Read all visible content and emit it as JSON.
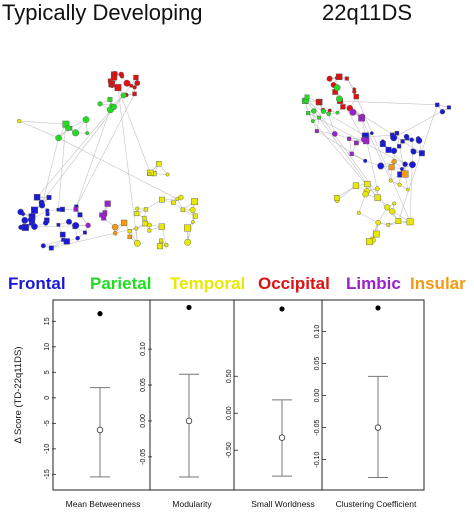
{
  "titles": {
    "left": "Typically Developing",
    "right": "22q11DS"
  },
  "legend": {
    "items": [
      {
        "label": "Frontal",
        "color": "#1a1ad6"
      },
      {
        "label": "Parietal",
        "color": "#22dd22"
      },
      {
        "label": "Temporal",
        "color": "#e8e800"
      },
      {
        "label": "Occipital",
        "color": "#dd1111"
      },
      {
        "label": "Limbic",
        "color": "#9922cc"
      },
      {
        "label": "Insular",
        "color": "#f29a12"
      }
    ]
  },
  "chart_data": {
    "type": "scatter",
    "ylabel": "Δ Score (TD-22q11DS)",
    "panels": [
      {
        "label": "Mean Betweenness",
        "yticks": [
          15,
          10,
          5,
          0,
          -5,
          -10,
          -15
        ],
        "ylim": [
          -16.5,
          18
        ],
        "observed": 16.5,
        "null_mean": -6.3,
        "null_upper": 2.0,
        "null_lower": -15.5
      },
      {
        "label": "Modularity",
        "yticks": [
          0.1,
          0.05,
          0.0,
          -0.05
        ],
        "ylim": [
          -0.085,
          0.16
        ],
        "observed": 0.158,
        "null_mean": 0.0,
        "null_upper": 0.065,
        "null_lower": -0.078
      },
      {
        "label": "Small Worldness",
        "yticks": [
          0.5,
          0.0,
          -0.5
        ],
        "ylim": [
          -0.93,
          1.45
        ],
        "observed": 1.41,
        "null_mean": -0.33,
        "null_upper": 0.18,
        "null_lower": -0.85
      },
      {
        "label": "Clustering Coefficient",
        "yticks": [
          0.1,
          0.05,
          0.0,
          -0.05,
          -0.1
        ],
        "ylim": [
          -0.135,
          0.14
        ],
        "observed": 0.137,
        "null_mean": -0.05,
        "null_upper": 0.03,
        "null_lower": -0.128
      }
    ]
  }
}
